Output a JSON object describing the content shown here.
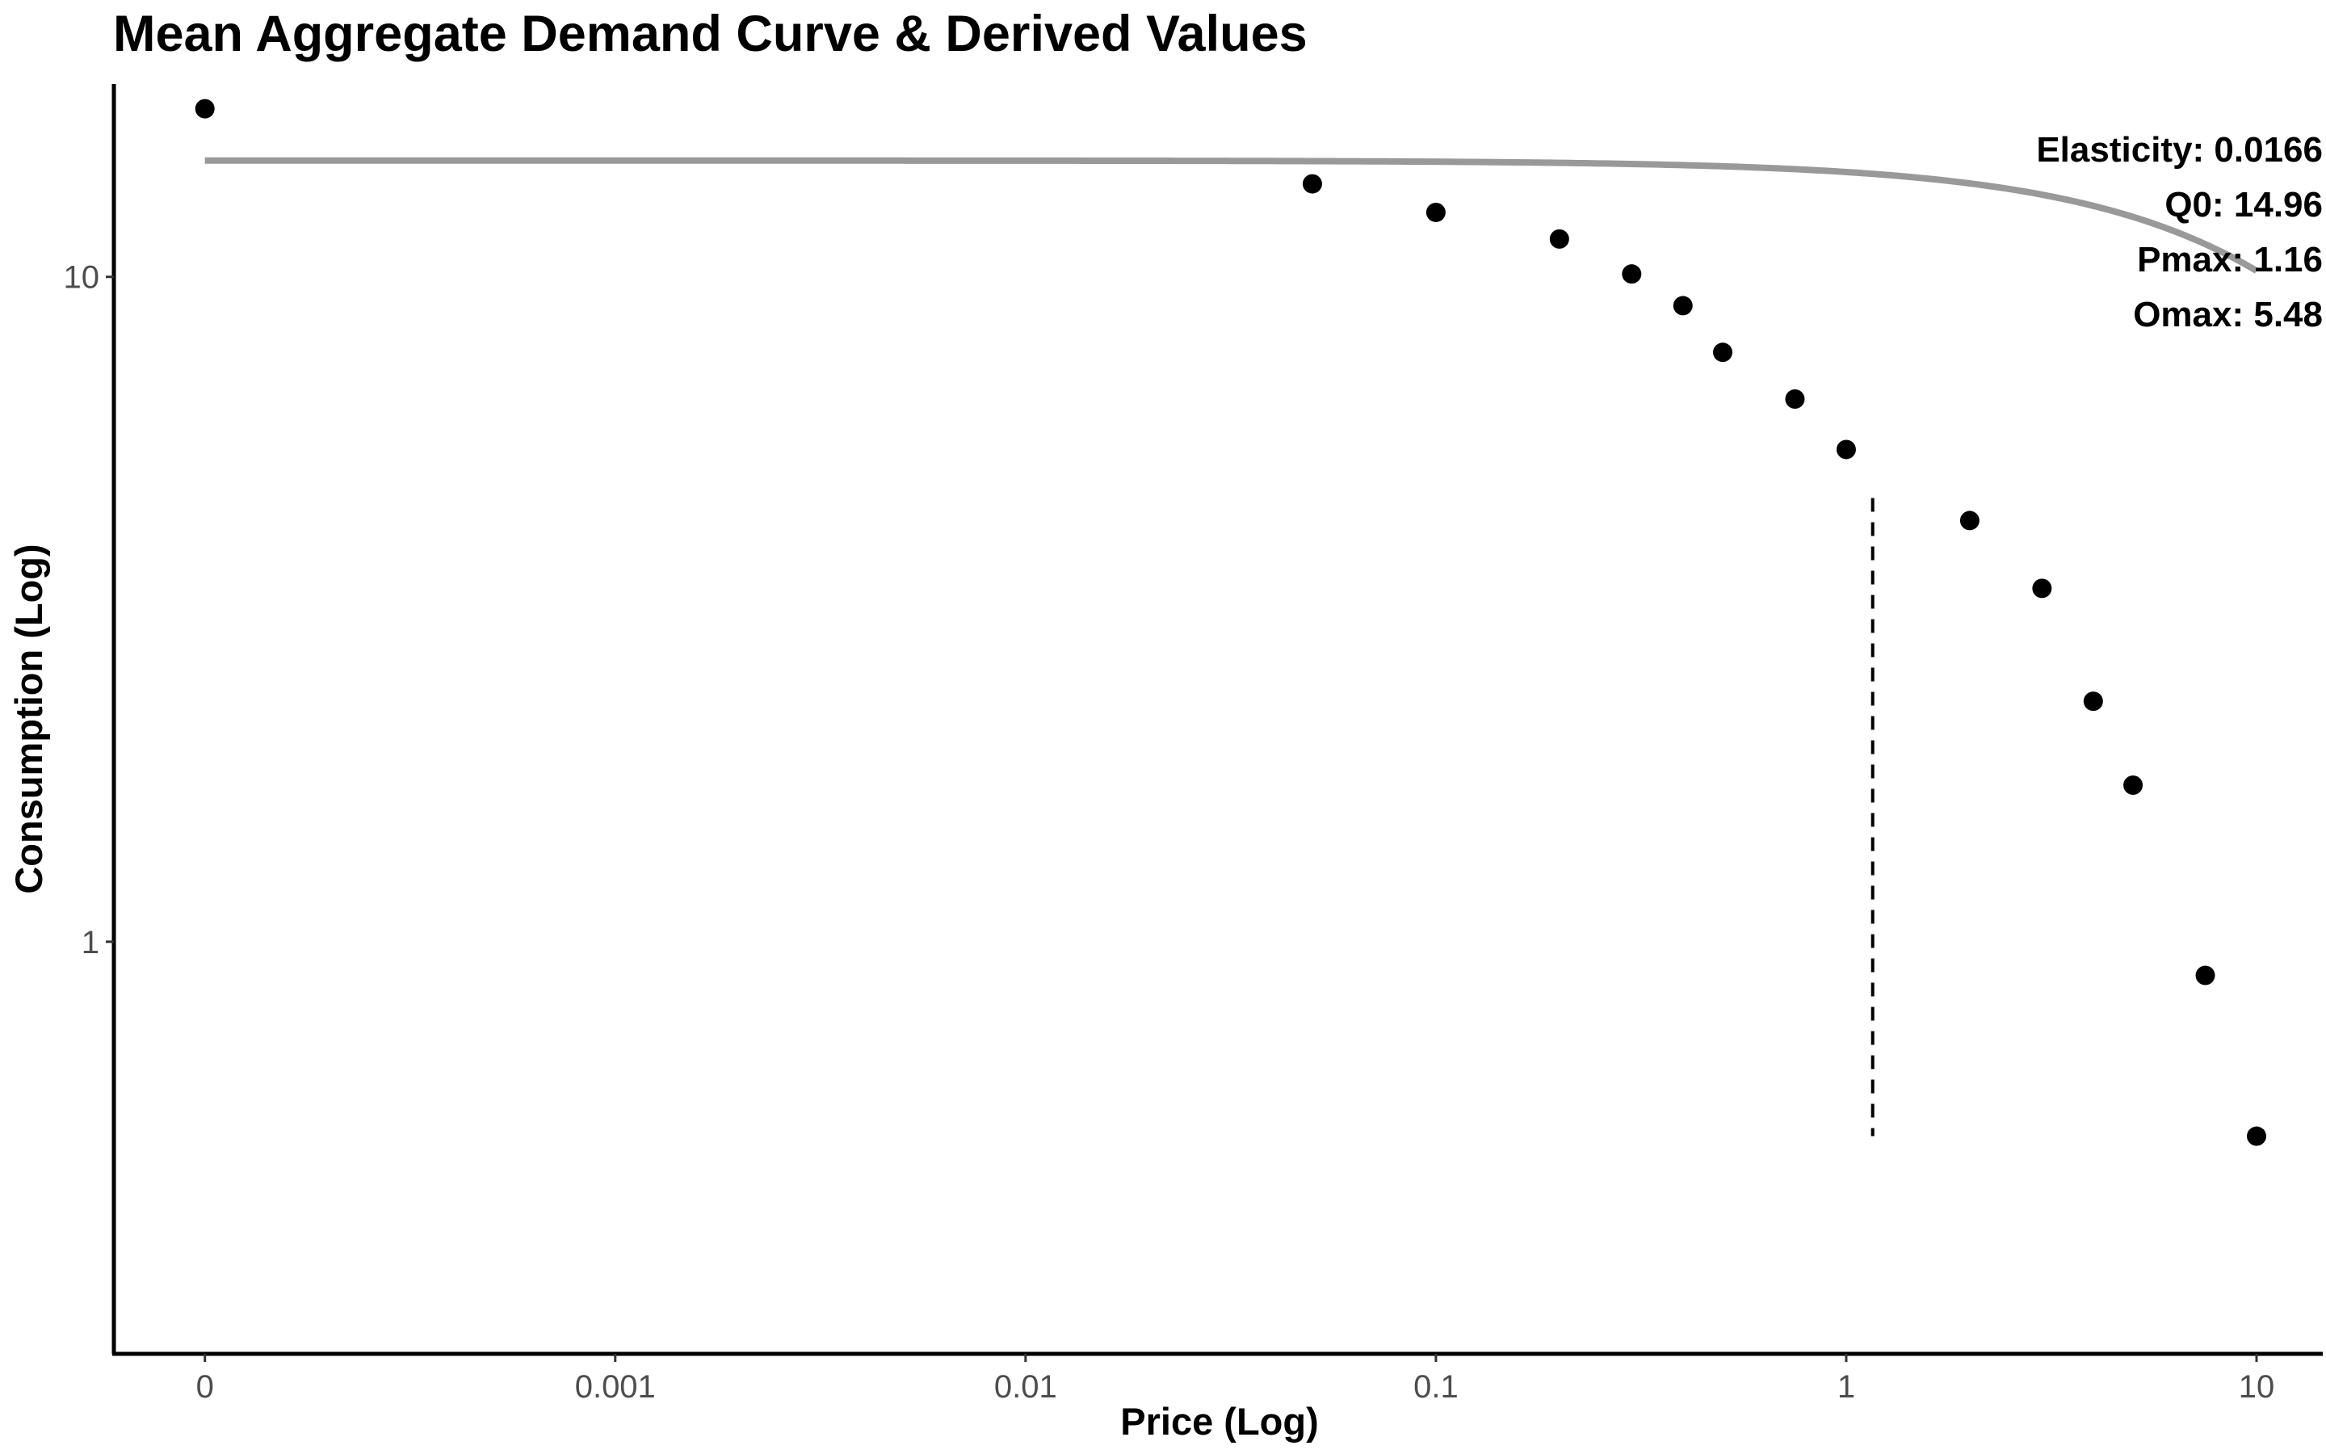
{
  "chart_data": {
    "type": "scatter",
    "title": "Mean Aggregate Demand Curve & Derived Values",
    "xlabel": "Price (Log)",
    "ylabel": "Consumption (Log)",
    "x_scale": "log",
    "y_scale": "log",
    "xlim": [
      6e-05,
      14.5
    ],
    "ylim": [
      0.24,
      19.5
    ],
    "grid": false,
    "x_ticks": [
      {
        "value": 0.0001,
        "label": "0"
      },
      {
        "value": 0.001,
        "label": "0.001"
      },
      {
        "value": 0.01,
        "label": "0.01"
      },
      {
        "value": 0.1,
        "label": "0.1"
      },
      {
        "value": 1,
        "label": "1"
      },
      {
        "value": 10,
        "label": "10"
      }
    ],
    "y_ticks": [
      {
        "value": 1,
        "label": "1"
      },
      {
        "value": 10,
        "label": "10"
      }
    ],
    "series": [
      {
        "kind": "points",
        "color": "#000000",
        "points": [
          {
            "x": 0.0001,
            "y": 17.9
          },
          {
            "x": 0.05,
            "y": 13.8
          },
          {
            "x": 0.1,
            "y": 12.5
          },
          {
            "x": 0.2,
            "y": 11.4
          },
          {
            "x": 0.3,
            "y": 10.1
          },
          {
            "x": 0.4,
            "y": 9.05
          },
          {
            "x": 0.5,
            "y": 7.7
          },
          {
            "x": 0.75,
            "y": 6.55
          },
          {
            "x": 1,
            "y": 5.5
          },
          {
            "x": 2,
            "y": 4.3
          },
          {
            "x": 3,
            "y": 3.4
          },
          {
            "x": 4,
            "y": 2.3
          },
          {
            "x": 5,
            "y": 1.72
          },
          {
            "x": 7.5,
            "y": 0.89
          },
          {
            "x": 10,
            "y": 0.51
          }
        ]
      },
      {
        "kind": "curve",
        "color": "#999999",
        "model": "exponentiated",
        "q0": 14.96,
        "k": 1.877,
        "alpha": 0.000618,
        "x_range": [
          0.0001,
          10
        ]
      }
    ],
    "reference_lines": [
      {
        "orientation": "vertical",
        "x": 1.16,
        "y_range": [
          0.51,
          4.65
        ],
        "style": "dashed",
        "color": "#000000"
      }
    ],
    "annotations": [
      {
        "text": "Elasticity: 0.0166",
        "placement": "top-right"
      },
      {
        "text": "Q0: 14.96",
        "placement": "top-right"
      },
      {
        "text": "Pmax: 1.16",
        "placement": "top-right"
      },
      {
        "text": "Omax: 5.48",
        "placement": "top-right"
      }
    ]
  }
}
